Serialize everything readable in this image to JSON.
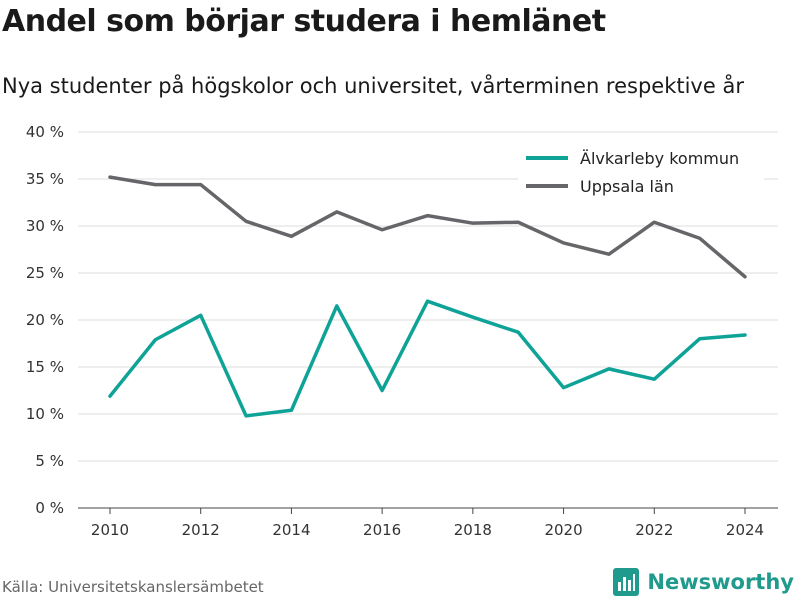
{
  "title": "Andel som börjar studera i hemlänet",
  "subtitle": "Nya studenter på högskolor och universitet, vårterminen respektive år",
  "source": "Källa: Universitetskanslersämbetet",
  "brand": {
    "name": "Newsworthy",
    "icon": "bar-chart-logo-icon",
    "color": "#1f9a8c"
  },
  "chart_data": {
    "type": "line",
    "title": "Andel som börjar studera i hemlänet",
    "x": [
      2010,
      2011,
      2012,
      2013,
      2014,
      2015,
      2016,
      2017,
      2018,
      2019,
      2020,
      2021,
      2022,
      2023,
      2024
    ],
    "x_ticks": [
      "2010",
      "2012",
      "2014",
      "2016",
      "2018",
      "2020",
      "2022",
      "2024"
    ],
    "y_ticks": [
      "0 %",
      "5 %",
      "10 %",
      "15 %",
      "20 %",
      "25 %",
      "30 %",
      "35 %",
      "40 %"
    ],
    "ylim": [
      0,
      40
    ],
    "grid": true,
    "legend_position": "top-right",
    "series": [
      {
        "name": "Älvkarleby kommun",
        "color": "#0fa398",
        "values": [
          11.9,
          17.9,
          20.5,
          9.8,
          10.4,
          21.5,
          12.5,
          22.0,
          20.3,
          18.7,
          12.8,
          14.8,
          13.7,
          18.0,
          18.4
        ]
      },
      {
        "name": "Uppsala län",
        "color": "#666569",
        "values": [
          35.2,
          34.4,
          34.4,
          30.5,
          28.9,
          31.5,
          29.6,
          31.1,
          30.3,
          30.4,
          28.2,
          27.0,
          30.4,
          28.7,
          24.6
        ]
      }
    ]
  }
}
